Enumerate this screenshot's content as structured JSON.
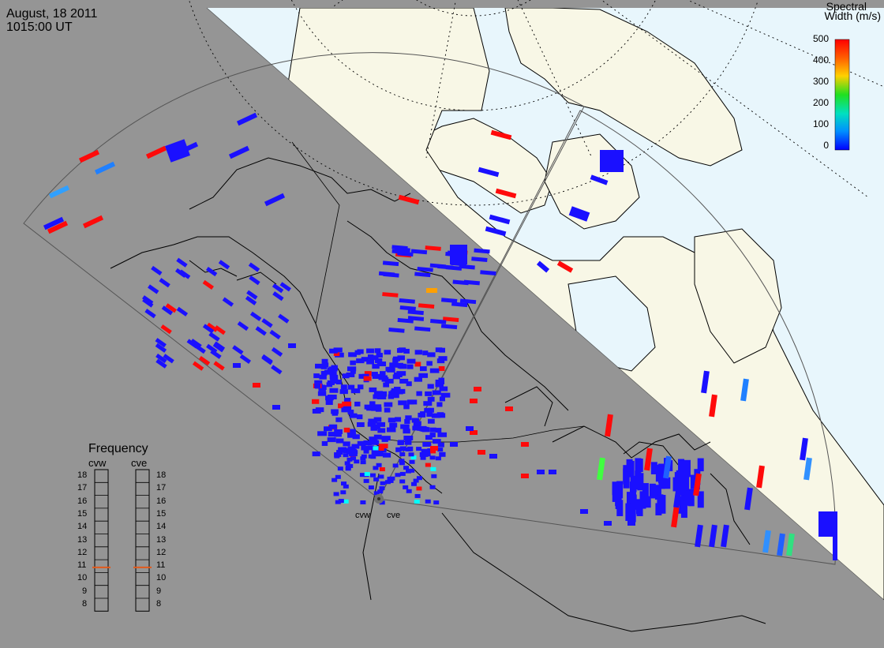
{
  "header": {
    "date": "August, 18 2011",
    "time": "1015:00 UT"
  },
  "colorbar": {
    "title_line1": "Spectral",
    "title_line2": "Width (m/s)",
    "ticks": [
      "500",
      "400",
      "300",
      "200",
      "100",
      "0"
    ],
    "gradient": [
      "#ff0000",
      "#ff8000",
      "#ffff00",
      "#00ff00",
      "#00ffff",
      "#0080ff",
      "#0000ff"
    ]
  },
  "frequency_panel": {
    "title": "Frequency",
    "radars": [
      "cvw",
      "cve"
    ],
    "ticks": [
      "18",
      "17",
      "16",
      "15",
      "14",
      "13",
      "12",
      "11",
      "10",
      "9",
      "8"
    ],
    "current_mhz": {
      "cvw": 10.9,
      "cve": 10.9
    },
    "indicator_color": "#e25a1c"
  },
  "radar_sites": {
    "west": "cvw",
    "east": "cve"
  },
  "colors": {
    "night": "#959595",
    "ocean_day": "#e8f6fc",
    "land_day": "#f8f7e6",
    "echo_low": "#1a10ff",
    "echo_high": "#ff0a0a"
  }
}
